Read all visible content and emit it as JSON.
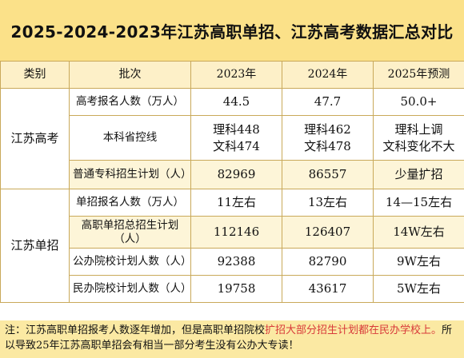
{
  "title": "2025-2024-2023年江苏高职单招、江苏高考数据汇总对比",
  "table": {
    "headers": [
      "类别",
      "批次",
      "2023年",
      "2024年",
      "2025年预测"
    ],
    "sections": [
      {
        "category": "江苏高考",
        "rows": [
          {
            "item": "高考报名人数（万人）",
            "y2023": "44.5",
            "y2024": "47.7",
            "y2025": "50.0+"
          },
          {
            "item": "本科省控线",
            "y2023": "理科448\n文科474",
            "y2024": "理科462\n文科478",
            "y2025": "理科上调\n文科变化不大"
          },
          {
            "item": "普通专科招生计划（人）",
            "y2023": "82969",
            "y2024": "86557",
            "y2025": "少量扩招"
          }
        ]
      },
      {
        "category": "江苏单招",
        "rows": [
          {
            "item": "单招报名人数（万人）",
            "y2023": "11左右",
            "y2024": "13左右",
            "y2025": "14—15左右"
          },
          {
            "item": "高职单招总招生计划（人）",
            "y2023": "112146",
            "y2024": "126407",
            "y2025": "14W左右"
          },
          {
            "item": "公办院校计划人数（人）",
            "y2023": "92388",
            "y2024": "82790",
            "y2025": "9W左右"
          },
          {
            "item": "民办院校计划人数（人）",
            "y2023": "19758",
            "y2024": "43617",
            "y2025": "5W左右"
          }
        ]
      }
    ]
  },
  "note": {
    "part1": "注：江苏高职单招报考人数逐年增加，但是高职单招院校",
    "part2_red": "扩招大部分招生计划都在民办学校上。",
    "part3": "所以导致25年江苏高职单招会有相当一部分考生没有公办大专读！"
  },
  "colors": {
    "title_bg": "#fbe189",
    "header_bg": "#fdf0c8",
    "highlight_row_bg": "#fdf5d8",
    "border": "#c9a95a",
    "note_bg": "#fbe9a3",
    "note_red": "#d83a3a"
  }
}
